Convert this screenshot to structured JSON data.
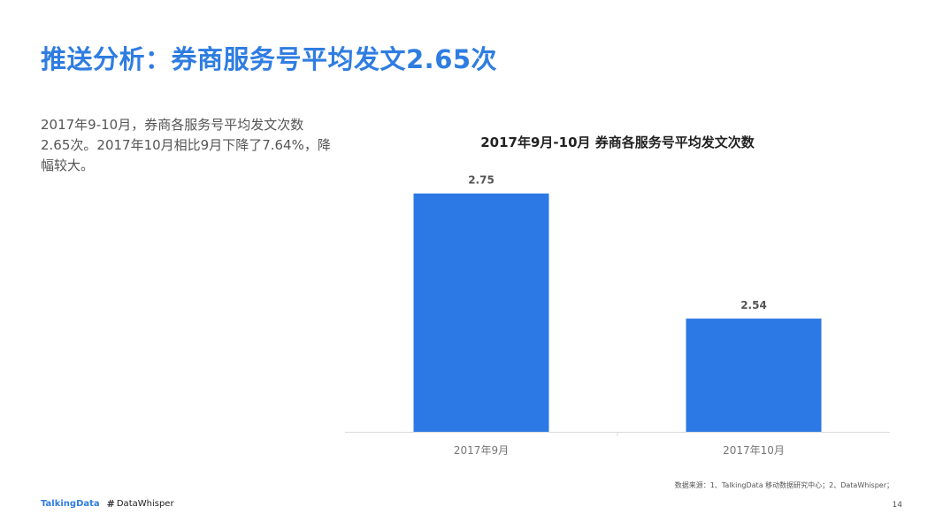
{
  "page": {
    "title": "推送分析：券商服务号平均发文2.65次",
    "description": "2017年9-10月，券商各服务号平均发文次数2.65次。2017年10月相比9月下降了7.64%，降幅较大。",
    "source": "数据来源：1、TalkingData 移动数据研究中心；2、DataWhisper；",
    "page_number": "14",
    "logo_talkingdata": "TalkingData",
    "logo_datawhisper": "DataWhisper"
  },
  "chart_data": {
    "type": "bar",
    "title": "2017年9月-10月 券商各服务号平均发文次数",
    "categories": [
      "2017年9月",
      "2017年10月"
    ],
    "values": [
      2.75,
      2.54
    ],
    "value_labels": [
      "2.75",
      "2.54"
    ],
    "xlabel": "",
    "ylabel": "",
    "ylim": [
      2.35,
      2.8
    ],
    "grid": false,
    "bar_color": "#2c78e4"
  },
  "colors": {
    "accent": "#2f7de1",
    "bar": "#2c78e4"
  }
}
